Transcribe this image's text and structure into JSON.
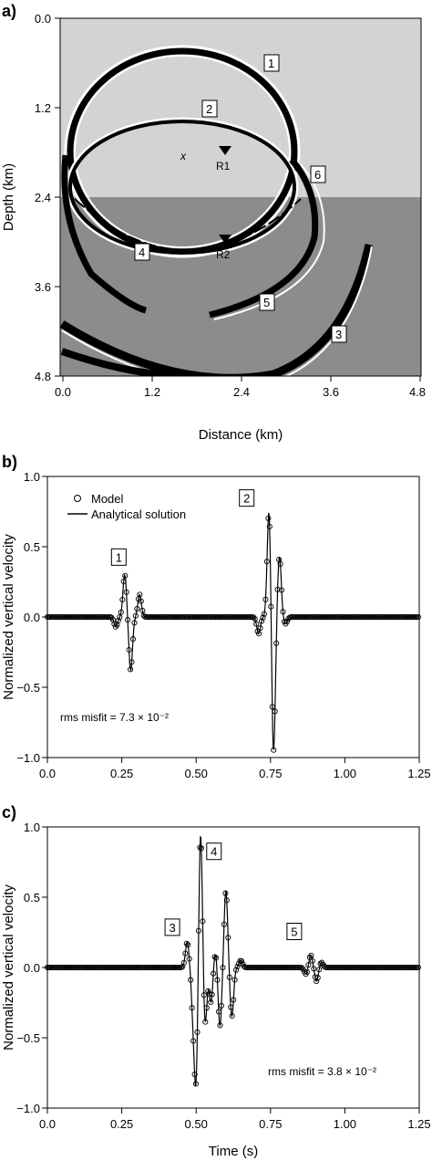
{
  "panels": {
    "a": {
      "label": "a)",
      "ylabel": "Depth (km)",
      "xlabel": "Distance (km)",
      "xticks": [
        "0.0",
        "1.2",
        "2.4",
        "3.6",
        "4.8"
      ],
      "yticks": [
        "0.0",
        "1.2",
        "2.4",
        "3.6",
        "4.8"
      ],
      "wave_labels": [
        "1",
        "2",
        "3",
        "4",
        "5",
        "6"
      ],
      "source_mark": "x",
      "receivers": [
        "R1",
        "R2"
      ],
      "colors": {
        "upper_layer": "#d3d3d3",
        "lower_layer": "#8c8c8c"
      }
    },
    "b": {
      "label": "b)"
    },
    "c": {
      "label": "c)"
    }
  },
  "chart_data": [
    {
      "type": "image",
      "panel": "a",
      "xlabel": "Distance (km)",
      "ylabel": "Depth (km)",
      "xlim": [
        0,
        4.8
      ],
      "ylim": [
        4.8,
        0
      ],
      "interface_depth": 2.4,
      "source": {
        "x": 1.6,
        "z": 1.85
      },
      "receivers": [
        {
          "name": "R1",
          "x": 2.15,
          "z": 1.75
        },
        {
          "name": "R2",
          "x": 2.15,
          "z": 2.9
        }
      ]
    },
    {
      "type": "line",
      "panel": "b",
      "xlabel": "",
      "ylabel": "Normalized vertical velocity",
      "xlim": [
        0,
        1.25
      ],
      "ylim": [
        -1,
        1
      ],
      "xticks": [
        "0.0",
        "0.25",
        "0.50",
        "0.75",
        "1.00",
        "1.25"
      ],
      "yticks": [
        "1.0",
        "0.5",
        "0.0",
        "−0.5",
        "−1.0"
      ],
      "legend": [
        "Model",
        "Analytical solution"
      ],
      "annotation": "rms misfit = 7.3 × 10⁻²",
      "event_labels": [
        {
          "text": "1",
          "x": 0.24,
          "y": 0.42
        },
        {
          "text": "2",
          "x": 0.67,
          "y": 0.84
        }
      ],
      "events": [
        {
          "t": 0.23,
          "v": -0.07
        },
        {
          "t": 0.26,
          "v": 0.3
        },
        {
          "t": 0.28,
          "v": -0.38
        },
        {
          "t": 0.31,
          "v": 0.16
        },
        {
          "t": 0.71,
          "v": -0.12
        },
        {
          "t": 0.745,
          "v": 0.78
        },
        {
          "t": 0.76,
          "v": -0.98
        },
        {
          "t": 0.78,
          "v": 0.43
        },
        {
          "t": 0.8,
          "v": -0.05
        }
      ]
    },
    {
      "type": "line",
      "panel": "c",
      "xlabel": "Time (s)",
      "ylabel": "Normalized vertical velocity",
      "xlim": [
        0,
        1.25
      ],
      "ylim": [
        -1,
        1
      ],
      "xticks": [
        "0.0",
        "0.25",
        "0.50",
        "0.75",
        "1.00",
        "1.25"
      ],
      "yticks": [
        "1.0",
        "0.5",
        "0.0",
        "−0.5",
        "−1.0"
      ],
      "annotation": "rms misfit = 3.8 × 10⁻²",
      "event_labels": [
        {
          "text": "3",
          "x": 0.42,
          "y": 0.28
        },
        {
          "text": "4",
          "x": 0.56,
          "y": 0.82
        },
        {
          "text": "5",
          "x": 0.83,
          "y": 0.25
        }
      ],
      "events": [
        {
          "t": 0.47,
          "v": 0.18
        },
        {
          "t": 0.49,
          "v": -0.3
        },
        {
          "t": 0.5,
          "v": -0.78
        },
        {
          "t": 0.515,
          "v": 0.99
        },
        {
          "t": 0.53,
          "v": -0.42
        },
        {
          "t": 0.55,
          "v": -0.25
        },
        {
          "t": 0.565,
          "v": 0.12
        },
        {
          "t": 0.58,
          "v": -0.42
        },
        {
          "t": 0.6,
          "v": 0.55
        },
        {
          "t": 0.62,
          "v": -0.35
        },
        {
          "t": 0.65,
          "v": 0.05
        },
        {
          "t": 0.87,
          "v": -0.05
        },
        {
          "t": 0.885,
          "v": 0.09
        },
        {
          "t": 0.905,
          "v": -0.1
        },
        {
          "t": 0.92,
          "v": 0.04
        }
      ]
    }
  ]
}
